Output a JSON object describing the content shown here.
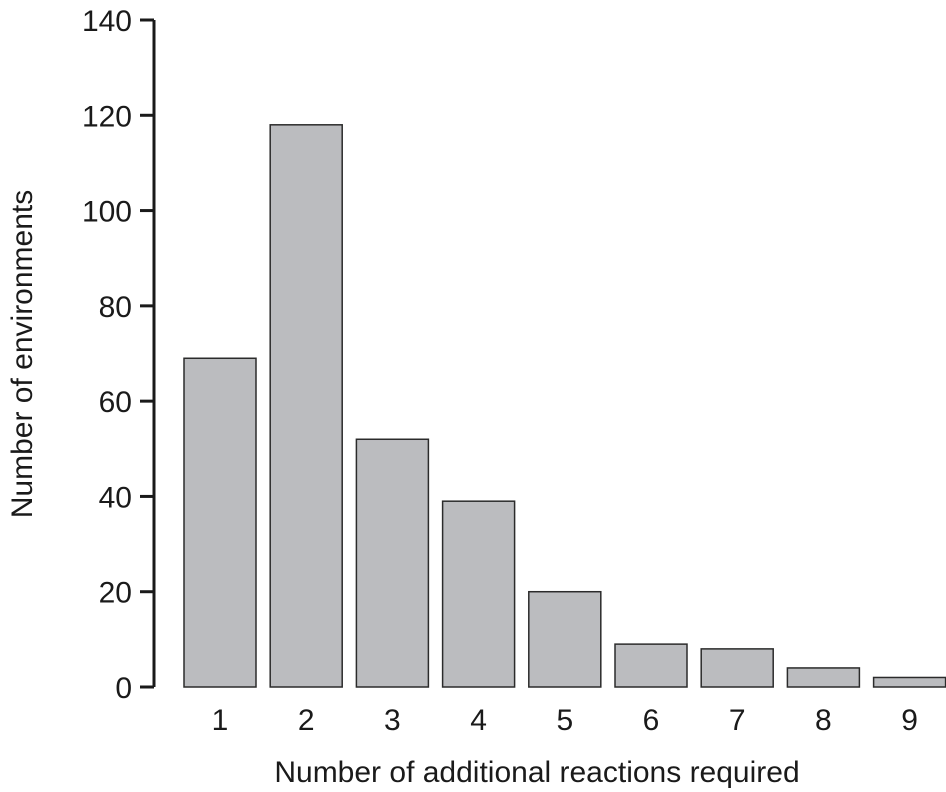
{
  "chart_data": {
    "type": "bar",
    "categories": [
      "1",
      "2",
      "3",
      "4",
      "5",
      "6",
      "7",
      "8",
      "9"
    ],
    "values": [
      69,
      118,
      52,
      39,
      20,
      9,
      8,
      4,
      2
    ],
    "title": "",
    "xlabel": "Number of additional reactions required",
    "ylabel": "Number of environments",
    "ylim": [
      0,
      140
    ],
    "yticks": [
      0,
      20,
      40,
      60,
      80,
      100,
      120,
      140
    ],
    "grid": false,
    "legend": "none",
    "bar_color": "#bbbcbf",
    "bar_edge_color": "#2b2b2b",
    "axis_color": "#1a1a1a"
  }
}
